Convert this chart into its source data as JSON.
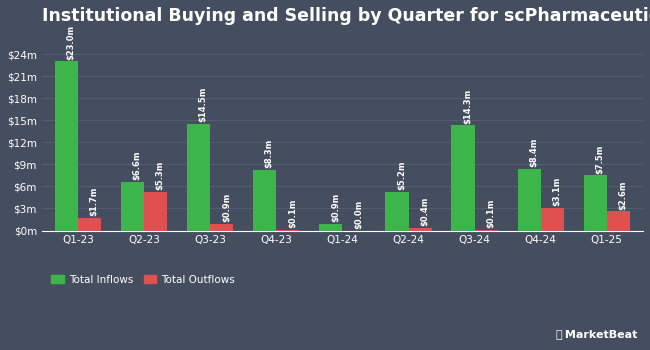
{
  "title": "Institutional Buying and Selling by Quarter for scPharmaceuticals",
  "quarters": [
    "Q1-23",
    "Q2-23",
    "Q3-23",
    "Q4-23",
    "Q1-24",
    "Q2-24",
    "Q3-24",
    "Q4-24",
    "Q1-25"
  ],
  "inflows": [
    23.0,
    6.6,
    14.5,
    8.3,
    0.9,
    5.2,
    14.3,
    8.4,
    7.5
  ],
  "outflows": [
    1.7,
    5.3,
    0.9,
    0.1,
    0.0,
    0.4,
    0.1,
    3.1,
    2.6
  ],
  "inflow_labels": [
    "$23.0m",
    "$6.6m",
    "$14.5m",
    "$8.3m",
    "$0.9m",
    "$5.2m",
    "$14.3m",
    "$8.4m",
    "$7.5m"
  ],
  "outflow_labels": [
    "$1.7m",
    "$5.3m",
    "$0.9m",
    "$0.1m",
    "$0.0m",
    "$0.4m",
    "$0.1m",
    "$3.1m",
    "$2.6m"
  ],
  "inflow_color": "#3cb54a",
  "outflow_color": "#e05050",
  "background_color": "#454e5f",
  "text_color": "#ffffff",
  "grid_color": "#556070",
  "bar_width": 0.35,
  "ylim": [
    0,
    27
  ],
  "yticks": [
    0,
    3,
    6,
    9,
    12,
    15,
    18,
    21,
    24
  ],
  "ytick_labels": [
    "$0m",
    "$3m",
    "$6m",
    "$9m",
    "$12m",
    "$15m",
    "$18m",
    "$21m",
    "$24m"
  ],
  "legend_inflow": "Total Inflows",
  "legend_outflow": "Total Outflows",
  "bar_label_fontsize": 6.0,
  "title_fontsize": 12.5
}
